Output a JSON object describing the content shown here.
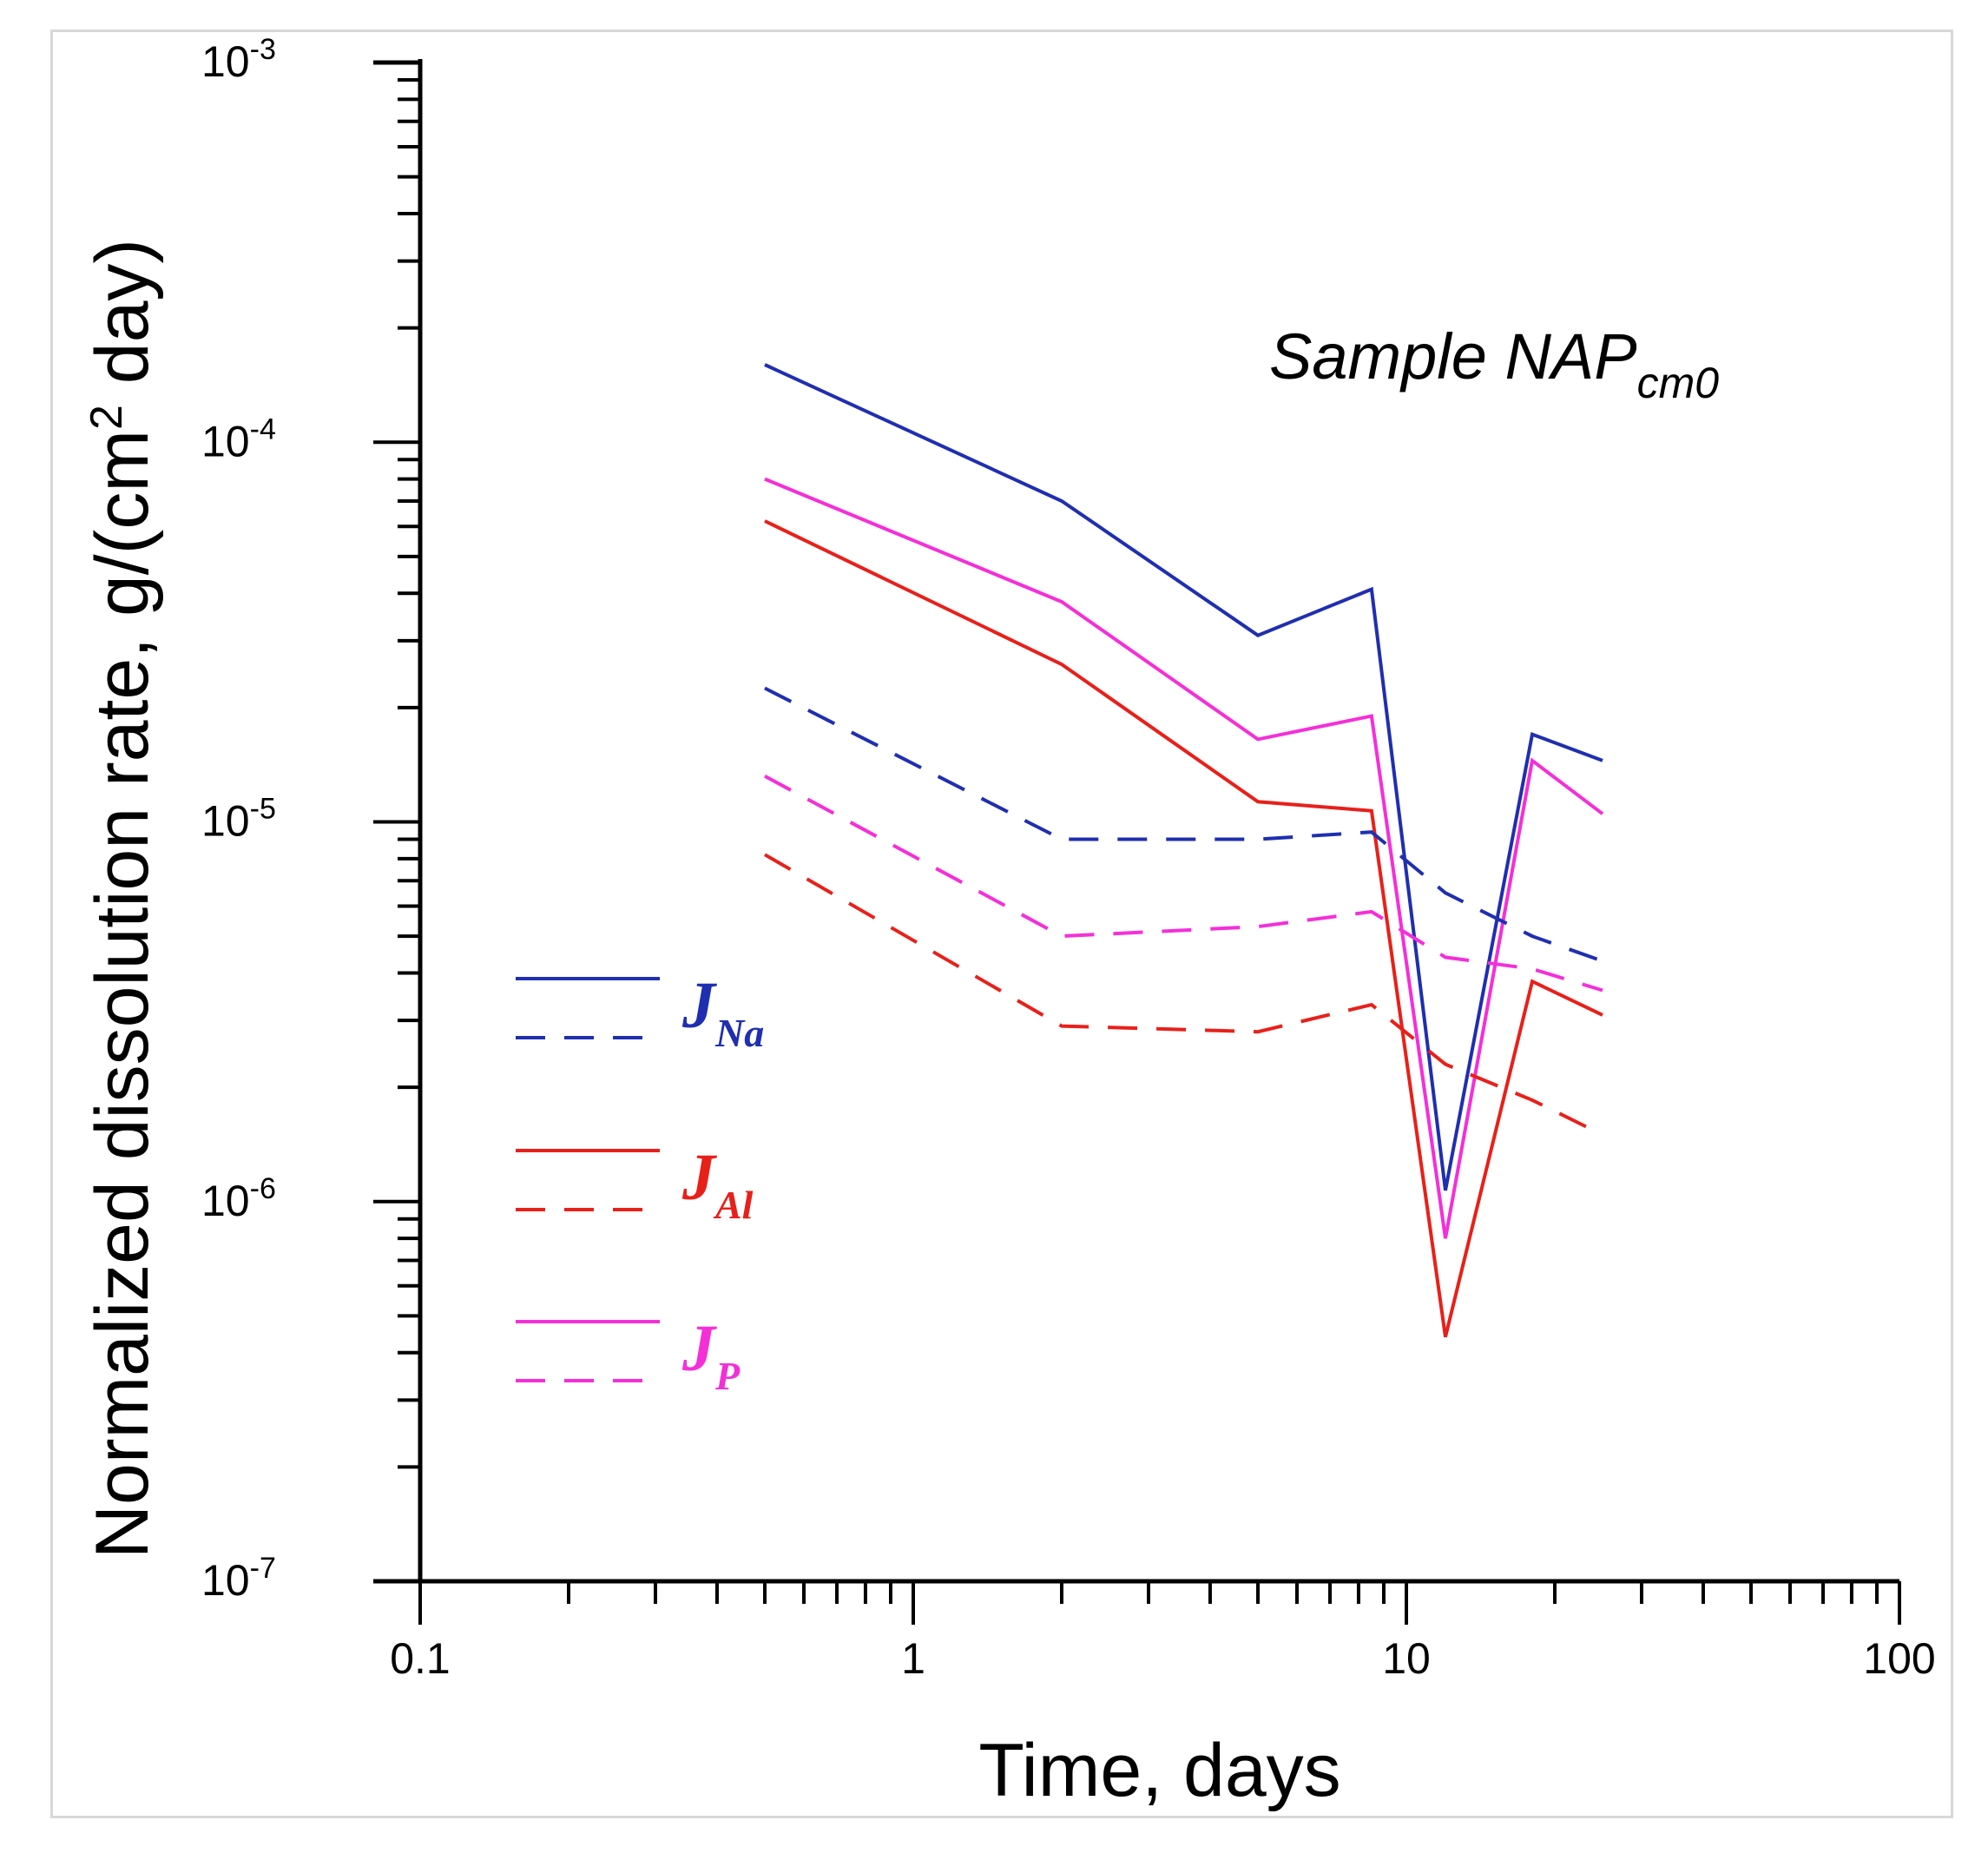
{
  "chart_data": {
    "type": "line",
    "xscale": "log",
    "yscale": "log",
    "xlim": [
      0.1,
      100
    ],
    "ylim": [
      1e-07,
      0.001
    ],
    "xlabel": "Time, days",
    "ylabel": "Normalized dissolution rate, g/(cm² day)",
    "ylabel_parts": {
      "before": "Normalized dissolution rate, g/(cm",
      "sup": "2",
      "after": " day)"
    },
    "x_tick_labels": [
      {
        "value": 0.1,
        "label": "0.1"
      },
      {
        "value": 1,
        "label": "1"
      },
      {
        "value": 10,
        "label": "10"
      },
      {
        "value": 100,
        "label": "100"
      }
    ],
    "y_tick_labels": [
      {
        "value": 1e-07,
        "base": "10",
        "exp": "-7"
      },
      {
        "value": 1e-06,
        "base": "10",
        "exp": "-6"
      },
      {
        "value": 1e-05,
        "base": "10",
        "exp": "-5"
      },
      {
        "value": 0.0001,
        "base": "10",
        "exp": "-4"
      },
      {
        "value": 0.001,
        "base": "10",
        "exp": "-3"
      }
    ],
    "annotation": {
      "text": "Sample NAP",
      "sub": "cm0"
    },
    "series": [
      {
        "name": "J_Na solid",
        "color": "#1f2fb0",
        "dash": "solid",
        "x": [
          0.5,
          2,
          5,
          8.5,
          12,
          18,
          25
        ],
        "y": [
          0.00016,
          7e-05,
          3.1e-05,
          4.1e-05,
          1.07e-06,
          1.7e-05,
          1.45e-05
        ]
      },
      {
        "name": "J_P solid",
        "color": "#f42fd8",
        "dash": "solid",
        "x": [
          0.5,
          2,
          5,
          8.5,
          12,
          18,
          25
        ],
        "y": [
          8e-05,
          3.8e-05,
          1.65e-05,
          1.9e-05,
          8e-07,
          1.45e-05,
          1.05e-05
        ]
      },
      {
        "name": "J_Al solid",
        "color": "#e8201a",
        "dash": "solid",
        "x": [
          0.5,
          2,
          5,
          8.5,
          12,
          18,
          25
        ],
        "y": [
          6.2e-05,
          2.6e-05,
          1.13e-05,
          1.07e-05,
          4.4e-07,
          3.8e-06,
          3.1e-06
        ]
      },
      {
        "name": "J_Na dashed",
        "color": "#1f2fb0",
        "dash": "dashed",
        "x": [
          0.5,
          2,
          5,
          8.5,
          12,
          18,
          25
        ],
        "y": [
          2.25e-05,
          9e-06,
          9e-06,
          9.4e-06,
          6.5e-06,
          5e-06,
          4.3e-06
        ]
      },
      {
        "name": "J_P dashed",
        "color": "#f42fd8",
        "dash": "dashed",
        "x": [
          0.5,
          2,
          5,
          8.5,
          12,
          18,
          25
        ],
        "y": [
          1.32e-05,
          5e-06,
          5.3e-06,
          5.8e-06,
          4.4e-06,
          4.1e-06,
          3.6e-06
        ]
      },
      {
        "name": "J_Al dashed",
        "color": "#e8201a",
        "dash": "dashed",
        "x": [
          0.5,
          2,
          5,
          8.5,
          12,
          18,
          25
        ],
        "y": [
          8.2e-06,
          2.9e-06,
          2.8e-06,
          3.3e-06,
          2.3e-06,
          1.85e-06,
          1.5e-06
        ]
      }
    ],
    "legend": [
      {
        "symbol": "J",
        "sub": "Na",
        "color": "#1f2fb0"
      },
      {
        "symbol": "J",
        "sub": "Al",
        "color": "#e8201a"
      },
      {
        "symbol": "J",
        "sub": "P",
        "color": "#f42fd8"
      }
    ],
    "legend_position": "left"
  }
}
